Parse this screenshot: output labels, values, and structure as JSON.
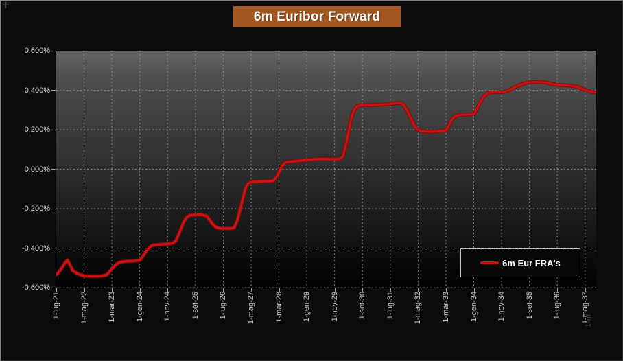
{
  "title": "6m Euribor Forward",
  "legend": {
    "label": "6m Eur FRA's",
    "line_color": "#cc1111"
  },
  "artifacts": {
    "corner_plus": "+",
    "clipped_label": "1-m"
  },
  "colors": {
    "background": "#0b0b0b",
    "title_bg": "#A4571E",
    "title_text": "#ffffff",
    "series": "#cc1111",
    "series_edge": "#7e0b0b",
    "grid": "#989898",
    "axis": "#b5b5b5",
    "y_label_text": "#dcdcdc",
    "x_label_text": "#c9c9c9"
  },
  "chart_data": {
    "type": "line",
    "title": "6m Euribor Forward",
    "xlabel": "",
    "ylabel": "",
    "grid": true,
    "legend_position": "bottom-right",
    "x_unit": "months since 1-lug-21",
    "xlim_months": [
      0,
      194
    ],
    "ylim": [
      -0.6,
      0.6
    ],
    "x_tick_months": [
      0,
      10,
      20,
      30,
      40,
      50,
      60,
      70,
      80,
      90,
      100,
      110,
      120,
      130,
      140,
      150,
      160,
      170,
      180,
      190
    ],
    "x_tick_labels": [
      "1-lug-21",
      "1-mag-22",
      "1-mar-23",
      "1-gen-24",
      "1-nov-24",
      "1-set-25",
      "1-lug-26",
      "1-mag-27",
      "1-mar-28",
      "1-gen-29",
      "1-nov-29",
      "1-set-30",
      "1-lug-31",
      "1-mag-32",
      "1-mar-33",
      "1-gen-34",
      "1-nov-34",
      "1-set-35",
      "1-lug-36",
      "1-mag-37"
    ],
    "y_ticks": [
      0.6,
      0.4,
      0.2,
      0.0,
      -0.2,
      -0.4,
      -0.6
    ],
    "y_tick_labels": [
      "0,600%",
      "0,400%",
      "0,200%",
      "0,000%",
      "-0,200%",
      "-0,400%",
      "-0,600%"
    ],
    "series": [
      {
        "name": "6m Eur FRA's",
        "color": "#cc1111",
        "points": [
          [
            0,
            -0.535
          ],
          [
            1,
            -0.52
          ],
          [
            2,
            -0.5
          ],
          [
            3,
            -0.478
          ],
          [
            4,
            -0.46
          ],
          [
            5,
            -0.487
          ],
          [
            6,
            -0.515
          ],
          [
            8,
            -0.532
          ],
          [
            10,
            -0.54
          ],
          [
            13,
            -0.543
          ],
          [
            16,
            -0.542
          ],
          [
            18,
            -0.536
          ],
          [
            19,
            -0.522
          ],
          [
            20,
            -0.503
          ],
          [
            21,
            -0.489
          ],
          [
            22,
            -0.478
          ],
          [
            23,
            -0.471
          ],
          [
            25,
            -0.467
          ],
          [
            28,
            -0.465
          ],
          [
            30,
            -0.461
          ],
          [
            31,
            -0.443
          ],
          [
            32,
            -0.422
          ],
          [
            33,
            -0.403
          ],
          [
            34,
            -0.39
          ],
          [
            35,
            -0.384
          ],
          [
            37,
            -0.382
          ],
          [
            40,
            -0.379
          ],
          [
            42,
            -0.374
          ],
          [
            43,
            -0.362
          ],
          [
            44,
            -0.33
          ],
          [
            45,
            -0.295
          ],
          [
            46,
            -0.262
          ],
          [
            47,
            -0.242
          ],
          [
            48,
            -0.234
          ],
          [
            50,
            -0.231
          ],
          [
            52,
            -0.23
          ],
          [
            54,
            -0.237
          ],
          [
            55,
            -0.255
          ],
          [
            56,
            -0.275
          ],
          [
            57,
            -0.29
          ],
          [
            58,
            -0.298
          ],
          [
            60,
            -0.301
          ],
          [
            63,
            -0.3
          ],
          [
            64,
            -0.295
          ],
          [
            65,
            -0.262
          ],
          [
            66,
            -0.21
          ],
          [
            67,
            -0.15
          ],
          [
            68,
            -0.095
          ],
          [
            69,
            -0.072
          ],
          [
            70,
            -0.066
          ],
          [
            73,
            -0.063
          ],
          [
            76,
            -0.061
          ],
          [
            78,
            -0.059
          ],
          [
            79,
            -0.043
          ],
          [
            80,
            -0.016
          ],
          [
            81,
            0.012
          ],
          [
            82,
            0.03
          ],
          [
            83,
            0.037
          ],
          [
            85,
            0.04
          ],
          [
            88,
            0.043
          ],
          [
            90,
            0.047
          ],
          [
            93,
            0.051
          ],
          [
            97,
            0.052
          ],
          [
            100,
            0.051
          ],
          [
            102,
            0.052
          ],
          [
            103,
            0.065
          ],
          [
            104,
            0.12
          ],
          [
            105,
            0.19
          ],
          [
            106,
            0.258
          ],
          [
            107,
            0.3
          ],
          [
            108,
            0.319
          ],
          [
            110,
            0.325
          ],
          [
            114,
            0.325
          ],
          [
            117,
            0.328
          ],
          [
            120,
            0.331
          ],
          [
            122,
            0.334
          ],
          [
            124,
            0.335
          ],
          [
            125,
            0.322
          ],
          [
            126,
            0.298
          ],
          [
            127,
            0.268
          ],
          [
            128,
            0.238
          ],
          [
            129,
            0.213
          ],
          [
            130,
            0.199
          ],
          [
            131,
            0.193
          ],
          [
            134,
            0.19
          ],
          [
            137,
            0.192
          ],
          [
            140,
            0.196
          ],
          [
            141,
            0.219
          ],
          [
            142,
            0.249
          ],
          [
            143,
            0.265
          ],
          [
            144,
            0.272
          ],
          [
            146,
            0.276
          ],
          [
            150,
            0.278
          ],
          [
            151,
            0.302
          ],
          [
            152,
            0.331
          ],
          [
            153,
            0.356
          ],
          [
            154,
            0.375
          ],
          [
            155,
            0.385
          ],
          [
            156,
            0.389
          ],
          [
            159,
            0.39
          ],
          [
            161,
            0.392
          ],
          [
            163,
            0.402
          ],
          [
            165,
            0.417
          ],
          [
            167,
            0.429
          ],
          [
            169,
            0.438
          ],
          [
            171,
            0.441
          ],
          [
            174,
            0.442
          ],
          [
            176,
            0.439
          ],
          [
            178,
            0.432
          ],
          [
            180,
            0.427
          ],
          [
            184,
            0.424
          ],
          [
            186,
            0.421
          ],
          [
            188,
            0.413
          ],
          [
            190,
            0.401
          ],
          [
            192,
            0.392
          ],
          [
            194,
            0.388
          ]
        ]
      }
    ]
  }
}
